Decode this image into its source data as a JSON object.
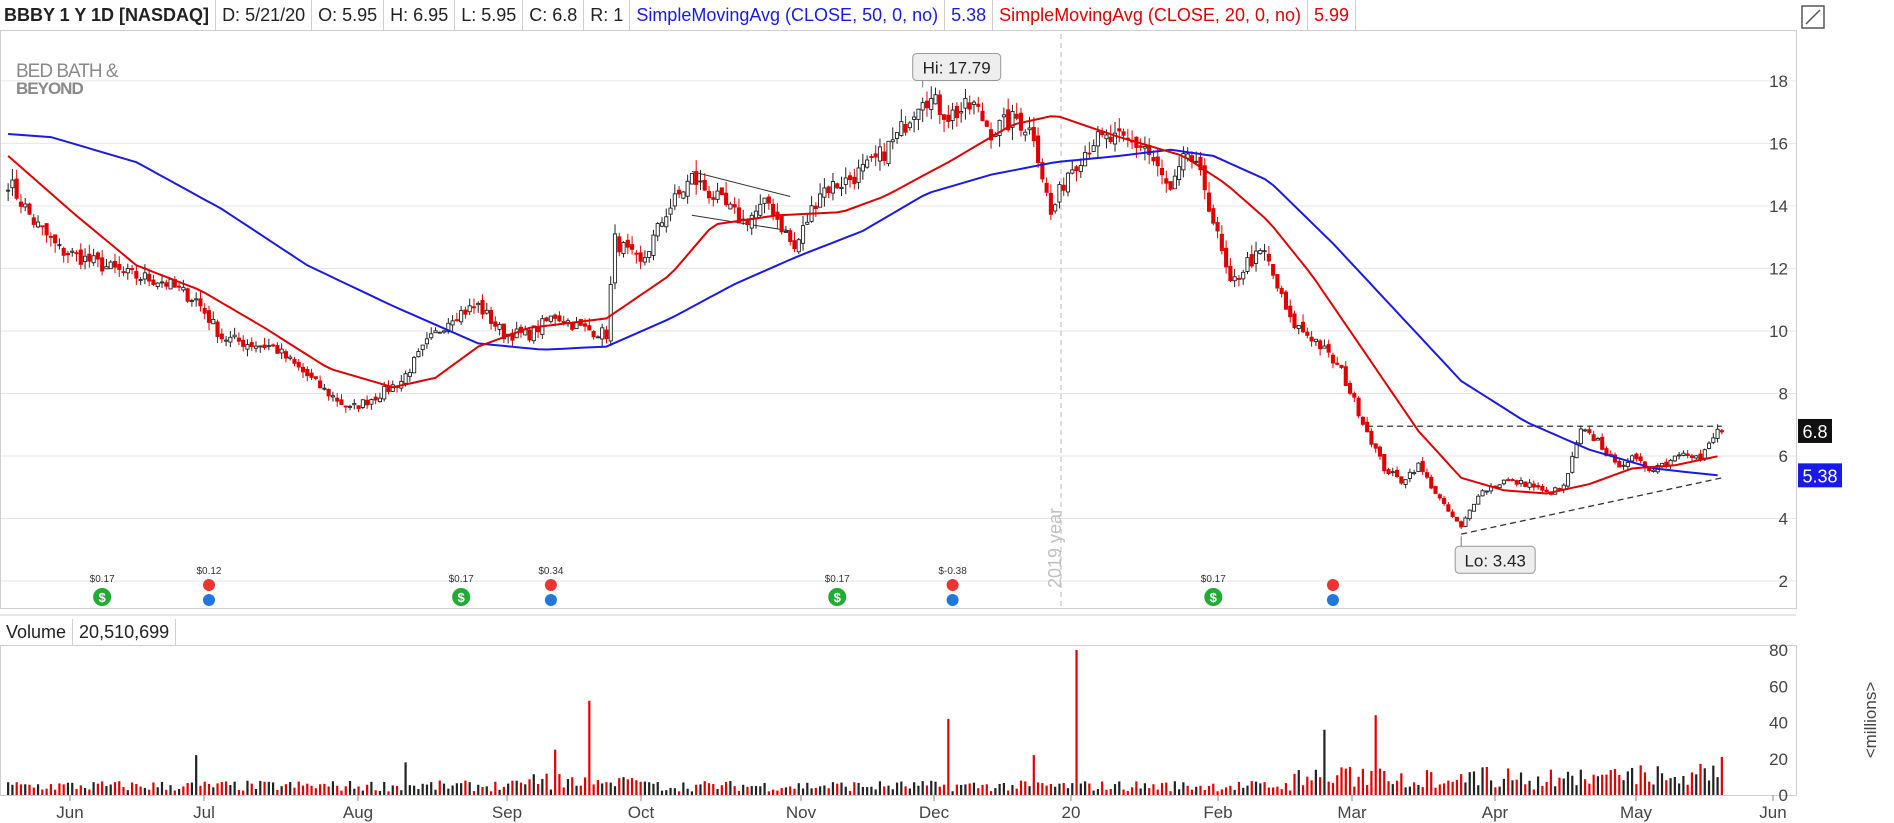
{
  "header": {
    "symbol": "BBBY 1 Y 1D [NASDAQ]",
    "date": "D: 5/21/20",
    "open": "O: 5.95",
    "high": "H: 6.95",
    "low": "L: 5.95",
    "close": "C: 6.8",
    "range": "R: 1",
    "sma50_label": "SimpleMovingAvg (CLOSE, 50, 0, no)",
    "sma50_value": "5.38",
    "sma20_label": "SimpleMovingAvg (CLOSE, 20, 0, no)",
    "sma20_value": "5.99"
  },
  "logo": {
    "line1": "BED BATH &",
    "line2": "BEYOND"
  },
  "colors": {
    "up": "#222222",
    "down": "#e00000",
    "sma50": "#1a1ae6",
    "sma20": "#e00000",
    "grid": "#e6e6e6"
  },
  "chart_data": {
    "type": "candlestick",
    "x_labels": [
      "Jun",
      "Jul",
      "Aug",
      "Sep",
      "Oct",
      "Nov",
      "Dec",
      "20",
      "Feb",
      "Mar",
      "Apr",
      "May",
      "Jun"
    ],
    "y_ticks": [
      2,
      4,
      6,
      8,
      10,
      12,
      14,
      16,
      18
    ],
    "ylim": [
      1.2,
      19.5
    ],
    "year_marker": "2019 year",
    "hi_label": "Hi: 17.79",
    "lo_label": "Lo: 3.43",
    "price_tag": "6.8",
    "sma_tag": "5.38",
    "anchors": [
      [
        0,
        14.8
      ],
      [
        6,
        13.5
      ],
      [
        12,
        12.6
      ],
      [
        20,
        12.2
      ],
      [
        28,
        11.8
      ],
      [
        36,
        11.6
      ],
      [
        44,
        11.0
      ],
      [
        50,
        9.8
      ],
      [
        56,
        9.6
      ],
      [
        62,
        9.5
      ],
      [
        68,
        8.8
      ],
      [
        74,
        8.1
      ],
      [
        80,
        7.5
      ],
      [
        86,
        7.9
      ],
      [
        92,
        8.4
      ],
      [
        98,
        9.6
      ],
      [
        104,
        10.5
      ],
      [
        110,
        10.8
      ],
      [
        116,
        9.9
      ],
      [
        122,
        9.9
      ],
      [
        128,
        10.5
      ],
      [
        134,
        10.1
      ],
      [
        140,
        9.9
      ],
      [
        142,
        12.9
      ],
      [
        148,
        12.1
      ],
      [
        154,
        13.8
      ],
      [
        160,
        14.9
      ],
      [
        166,
        14.2
      ],
      [
        172,
        13.5
      ],
      [
        178,
        14.1
      ],
      [
        184,
        12.6
      ],
      [
        190,
        14.5
      ],
      [
        196,
        14.8
      ],
      [
        202,
        15.3
      ],
      [
        208,
        16.2
      ],
      [
        214,
        17.6
      ],
      [
        220,
        16.9
      ],
      [
        226,
        17.2
      ],
      [
        230,
        16.4
      ],
      [
        236,
        16.8
      ],
      [
        240,
        16.3
      ],
      [
        244,
        13.7
      ],
      [
        248,
        15.1
      ],
      [
        254,
        16.1
      ],
      [
        260,
        16.1
      ],
      [
        266,
        15.9
      ],
      [
        272,
        14.4
      ],
      [
        276,
        15.7
      ],
      [
        280,
        14.6
      ],
      [
        286,
        11.4
      ],
      [
        290,
        12.2
      ],
      [
        294,
        12.5
      ],
      [
        300,
        10.3
      ],
      [
        306,
        9.7
      ],
      [
        312,
        8.7
      ],
      [
        318,
        6.8
      ],
      [
        322,
        5.6
      ],
      [
        326,
        5.2
      ],
      [
        330,
        5.7
      ],
      [
        336,
        4.4
      ],
      [
        340,
        3.7
      ],
      [
        344,
        4.8
      ],
      [
        350,
        5.2
      ],
      [
        356,
        5.1
      ],
      [
        360,
        4.8
      ],
      [
        364,
        5.0
      ],
      [
        368,
        6.8
      ],
      [
        372,
        6.5
      ],
      [
        376,
        5.7
      ],
      [
        380,
        5.9
      ],
      [
        384,
        5.6
      ],
      [
        388,
        5.8
      ],
      [
        392,
        6.2
      ],
      [
        396,
        5.9
      ],
      [
        400,
        6.8
      ]
    ],
    "sma50": [
      [
        0,
        16.3
      ],
      [
        10,
        16.2
      ],
      [
        30,
        15.4
      ],
      [
        50,
        13.9
      ],
      [
        70,
        12.1
      ],
      [
        90,
        10.8
      ],
      [
        110,
        9.6
      ],
      [
        125,
        9.4
      ],
      [
        140,
        9.5
      ],
      [
        155,
        10.4
      ],
      [
        170,
        11.5
      ],
      [
        185,
        12.4
      ],
      [
        200,
        13.2
      ],
      [
        215,
        14.4
      ],
      [
        230,
        15.0
      ],
      [
        245,
        15.4
      ],
      [
        260,
        15.6
      ],
      [
        272,
        15.8
      ],
      [
        282,
        15.6
      ],
      [
        295,
        14.8
      ],
      [
        310,
        12.8
      ],
      [
        325,
        10.6
      ],
      [
        340,
        8.4
      ],
      [
        355,
        7.1
      ],
      [
        370,
        6.2
      ],
      [
        385,
        5.6
      ],
      [
        400,
        5.38
      ]
    ],
    "sma20": [
      [
        0,
        15.6
      ],
      [
        15,
        13.8
      ],
      [
        30,
        12.1
      ],
      [
        45,
        11.3
      ],
      [
        60,
        10.1
      ],
      [
        75,
        8.8
      ],
      [
        90,
        8.2
      ],
      [
        100,
        8.5
      ],
      [
        110,
        9.5
      ],
      [
        122,
        10.1
      ],
      [
        140,
        10.4
      ],
      [
        155,
        11.8
      ],
      [
        165,
        13.4
      ],
      [
        180,
        13.7
      ],
      [
        195,
        13.8
      ],
      [
        205,
        14.3
      ],
      [
        220,
        15.4
      ],
      [
        235,
        16.6
      ],
      [
        245,
        16.9
      ],
      [
        260,
        16.2
      ],
      [
        275,
        15.6
      ],
      [
        285,
        14.7
      ],
      [
        295,
        13.5
      ],
      [
        305,
        11.8
      ],
      [
        318,
        9.2
      ],
      [
        330,
        6.8
      ],
      [
        340,
        5.3
      ],
      [
        350,
        4.9
      ],
      [
        360,
        4.8
      ],
      [
        370,
        5.1
      ],
      [
        380,
        5.6
      ],
      [
        390,
        5.7
      ],
      [
        400,
        5.99
      ]
    ],
    "dividends": [
      {
        "idx": 22,
        "label": "$0.17"
      },
      {
        "idx": 106,
        "label": "$0.17"
      },
      {
        "idx": 194,
        "label": "$0.17"
      },
      {
        "idx": 282,
        "label": "$0.17"
      }
    ],
    "earnings": [
      {
        "idx": 47,
        "label": "$0.12"
      },
      {
        "idx": 127,
        "label": "$0.34"
      },
      {
        "idx": 221,
        "label": "$-0.38"
      },
      {
        "idx": 310,
        "label": ""
      }
    ],
    "volume": {
      "label": "Volume",
      "value": "20,510,699",
      "y_ticks": [
        0,
        20,
        40,
        60,
        80
      ],
      "ylim": [
        0,
        80
      ],
      "unit": "<millions>",
      "spikes": [
        [
          44,
          22
        ],
        [
          93,
          18
        ],
        [
          136,
          52
        ],
        [
          128,
          25
        ],
        [
          220,
          42
        ],
        [
          250,
          80
        ],
        [
          308,
          36
        ],
        [
          320,
          44
        ],
        [
          401,
          21
        ],
        [
          240,
          22
        ]
      ]
    }
  }
}
